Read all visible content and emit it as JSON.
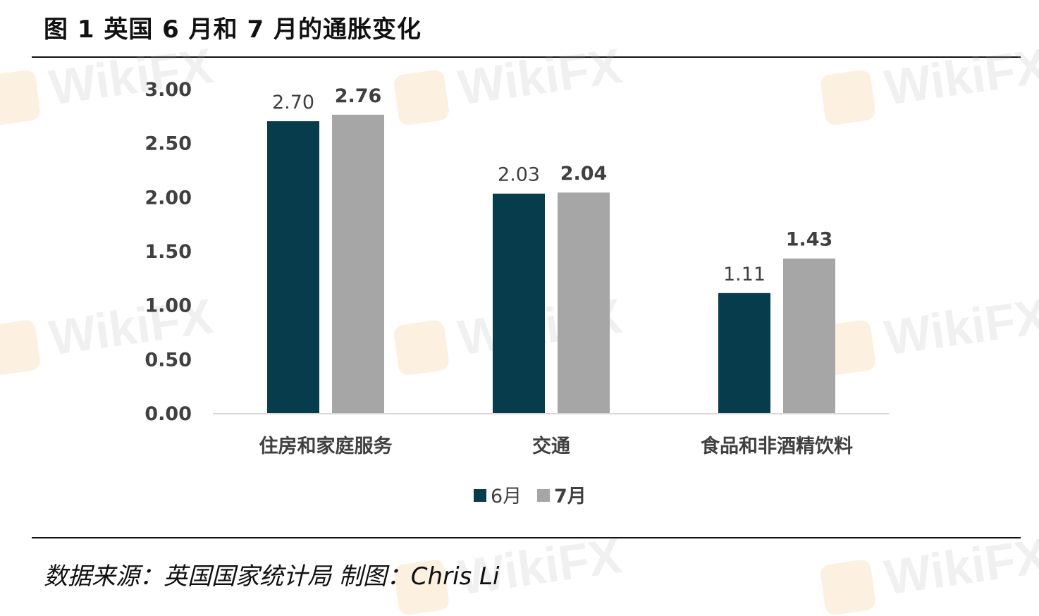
{
  "title": "图 1  英国 6 月和 7 月的通胀变化",
  "source": "数据来源：英国国家统计局  制图：Chris Li",
  "watermark_text": "WikiFX",
  "chart_data": {
    "type": "bar",
    "categories": [
      "住房和家庭服务",
      "交通",
      "食品和非酒精饮料"
    ],
    "series": [
      {
        "name": "6月",
        "values": [
          2.7,
          2.03,
          1.11
        ],
        "color": "#073c4d",
        "label_bold": false
      },
      {
        "name": "7月",
        "values": [
          2.76,
          2.04,
          1.43
        ],
        "color": "#a6a6a6",
        "label_bold": true
      }
    ],
    "value_labels": [
      [
        "2.70",
        "2.03",
        "1.11"
      ],
      [
        "2.76",
        "2.04",
        "1.43"
      ]
    ],
    "ylim": [
      0,
      3.0
    ],
    "yticks": [
      "0.00",
      "0.50",
      "1.00",
      "1.50",
      "2.00",
      "2.50",
      "3.00"
    ],
    "ytick_values": [
      0,
      0.5,
      1.0,
      1.5,
      2.0,
      2.5,
      3.0
    ],
    "legend_position": "bottom-center",
    "grid": false
  }
}
